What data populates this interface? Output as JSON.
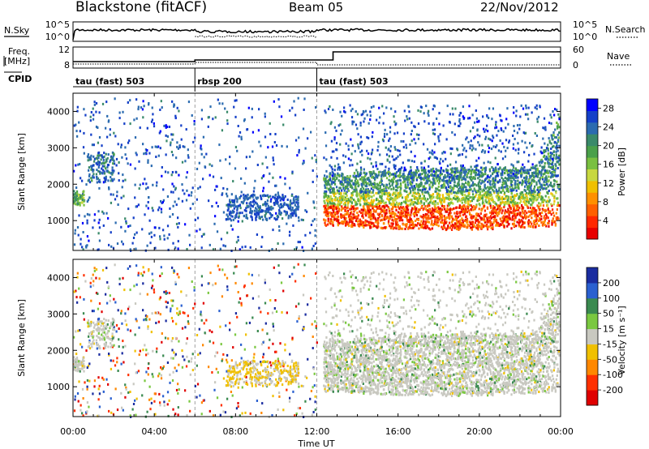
{
  "header": {
    "station": "Blackstone (fitACF)",
    "beam": "Beam 05",
    "date": "22/Nov/2012"
  },
  "noise_panel": {
    "left_label": "N.Sky",
    "left_ticks": [
      "10^5",
      "10^0"
    ],
    "right_ticks": [
      "10^5",
      "10^0"
    ],
    "right_label": "N.Search",
    "right_label_style": "dotted"
  },
  "freq_panel": {
    "left_label_line1": "Freq.",
    "left_label_line2": "[MHz]",
    "left_ticks": [
      "12",
      "8"
    ],
    "right_ticks": [
      "60",
      "0"
    ],
    "right_label": "Nave",
    "right_label_style": "dotted"
  },
  "cpid_panel": {
    "label": "CPID",
    "segments": [
      {
        "label": "tau (fast) 503",
        "start_hour": 0,
        "end_hour": 6
      },
      {
        "label": "rbsp 200",
        "start_hour": 6,
        "end_hour": 12
      },
      {
        "label": "tau (fast) 503",
        "start_hour": 12,
        "end_hour": 24
      }
    ]
  },
  "x_axis": {
    "title": "Time UT",
    "ticks": [
      "00:00",
      "04:00",
      "08:00",
      "12:00",
      "16:00",
      "20:00",
      "00:00"
    ],
    "tick_hours": [
      0,
      4,
      8,
      12,
      16,
      20,
      24
    ]
  },
  "chart_data": [
    {
      "type": "heatmap",
      "name": "power-panel",
      "ylabel": "Slant Range [km]",
      "yticks": [
        1000,
        2000,
        3000,
        4000
      ],
      "ylim": [
        180,
        4500
      ],
      "xlim_hours": [
        0,
        24
      ],
      "colorbar": {
        "label": "Power [dB]",
        "ticks": [
          "28",
          "24",
          "20",
          "16",
          "12",
          "8",
          "4"
        ],
        "tick_values": [
          28,
          24,
          20,
          16,
          12,
          8,
          4
        ],
        "range": [
          0,
          30
        ],
        "colors": [
          "#0000ff",
          "#1540c8",
          "#2b6bb0",
          "#3a8a6a",
          "#4aa04a",
          "#7ac040",
          "#c8d840",
          "#f0c000",
          "#ff9000",
          "#ff6000",
          "#ff2800",
          "#e80000"
        ]
      }
    },
    {
      "type": "heatmap",
      "name": "velocity-panel",
      "ylabel": "Slant Range [km]",
      "yticks": [
        1000,
        2000,
        3000,
        4000
      ],
      "ylim": [
        180,
        4500
      ],
      "xlim_hours": [
        0,
        24
      ],
      "colorbar": {
        "label": "Velocity [m s⁻¹]",
        "ticks": [
          "200",
          "100",
          "50",
          "15",
          "-15",
          "-50",
          "-100",
          "-200"
        ],
        "colors": [
          "#1a2ca0",
          "#2a60d0",
          "#3a8a50",
          "#7ac840",
          "#c8c8c0",
          "#f0c000",
          "#ff8800",
          "#ff3000",
          "#e00000"
        ]
      }
    }
  ]
}
